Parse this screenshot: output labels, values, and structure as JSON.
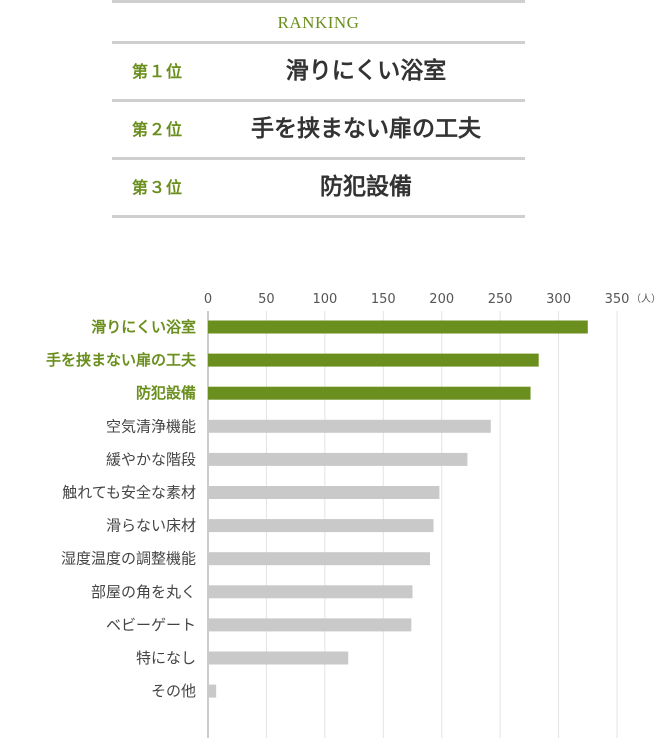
{
  "ranking": {
    "title": "RANKING",
    "items": [
      {
        "position": "第１位",
        "name": "滑りにくい浴室"
      },
      {
        "position": "第２位",
        "name": "手を挟まない扉の工夫"
      },
      {
        "position": "第３位",
        "name": "防犯設備"
      }
    ]
  },
  "colors": {
    "accent": "#6b8f1e",
    "bar_highlight": "#6b8f1e",
    "bar_default": "#c9c9c9",
    "rule": "#cfcfcf"
  },
  "chart_data": {
    "type": "bar",
    "orientation": "horizontal",
    "unit_label": "（人）",
    "xlim": [
      0,
      350
    ],
    "ticks": [
      0,
      50,
      100,
      150,
      200,
      250,
      300,
      350
    ],
    "categories": [
      "滑りにくい浴室",
      "手を挟まない扉の工夫",
      "防犯設備",
      "空気清浄機能",
      "緩やかな階段",
      "触れても安全な素材",
      "滑らない床材",
      "湿度温度の調整機能",
      "部屋の角を丸く",
      "ベビーゲート",
      "特になし",
      "その他"
    ],
    "values": [
      325,
      283,
      276,
      242,
      222,
      198,
      193,
      190,
      175,
      174,
      120,
      7
    ],
    "highlight_count": 3,
    "grid": true,
    "legend": "none"
  }
}
